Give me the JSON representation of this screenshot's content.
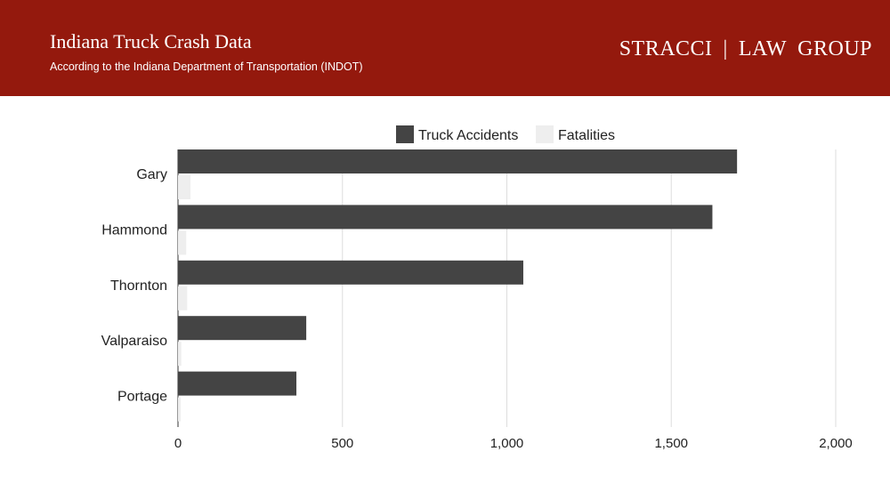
{
  "header": {
    "title": "Indiana Truck Crash Data",
    "subtitle": "According to the Indiana Department of Transportation (INDOT)",
    "brand_left": "STRACCI",
    "brand_divider": "|",
    "brand_right": "LAW  GROUP",
    "background_color": "#94190d"
  },
  "chart_data": {
    "type": "bar",
    "orientation": "horizontal",
    "categories": [
      "Gary",
      "Hammond",
      "Thornton",
      "Valparaiso",
      "Portage"
    ],
    "series": [
      {
        "name": "Truck Accidents",
        "values": [
          1700,
          1625,
          1050,
          390,
          360
        ],
        "color": "#444444"
      },
      {
        "name": "Fatalities",
        "values": [
          38,
          25,
          28,
          10,
          8
        ],
        "color": "#eeeeee"
      }
    ],
    "xlim": [
      0,
      2000
    ],
    "xticks": [
      0,
      500,
      1000,
      1500,
      2000
    ],
    "xtick_labels": [
      "0",
      "500",
      "1,000",
      "1,500",
      "2,000"
    ],
    "grid": true,
    "legend_position": "top"
  }
}
